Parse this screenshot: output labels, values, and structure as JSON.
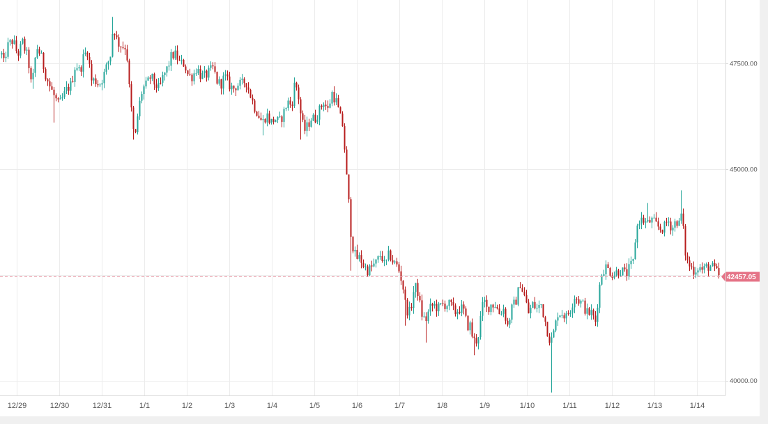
{
  "chart_data": {
    "type": "candlestick",
    "x_tick_labels": [
      "12/29",
      "12/30",
      "12/31",
      "1/1",
      "1/2",
      "1/3",
      "1/4",
      "1/5",
      "1/6",
      "1/7",
      "1/8",
      "1/9",
      "1/10",
      "1/11",
      "1/12",
      "1/13",
      "1/14"
    ],
    "y_tick_labels": [
      "47500.00",
      "45000.00",
      "40000.00"
    ],
    "y_ticks": [
      40000,
      42500,
      45000,
      47500
    ],
    "ylim": [
      39650,
      49000
    ],
    "current_price": 42457.05,
    "current_price_label": "42457.05",
    "grid": true,
    "colors": {
      "up": "#26a69a",
      "down": "#b71c1c",
      "price_tag": "#e57387",
      "price_line": "#e8a0ad"
    },
    "path_points": [
      [
        0,
        47850
      ],
      [
        5,
        47500
      ],
      [
        10,
        47900
      ],
      [
        18,
        48050
      ],
      [
        25,
        47700
      ],
      [
        32,
        48000
      ],
      [
        40,
        47600
      ],
      [
        45,
        46900
      ],
      [
        52,
        47900
      ],
      [
        58,
        47700
      ],
      [
        64,
        47300
      ],
      [
        70,
        47000
      ],
      [
        78,
        46700
      ],
      [
        84,
        46500
      ],
      [
        90,
        46700
      ],
      [
        96,
        46900
      ],
      [
        102,
        47000
      ],
      [
        108,
        47500
      ],
      [
        114,
        47300
      ],
      [
        120,
        47700
      ],
      [
        126,
        47800
      ],
      [
        130,
        47100
      ],
      [
        136,
        47100
      ],
      [
        142,
        47000
      ],
      [
        148,
        47200
      ],
      [
        154,
        47500
      ],
      [
        158,
        47700
      ],
      [
        162,
        48400
      ],
      [
        168,
        48000
      ],
      [
        175,
        47900
      ],
      [
        181,
        47900
      ],
      [
        184,
        47100
      ],
      [
        188,
        46400
      ],
      [
        191,
        45900
      ],
      [
        194,
        45800
      ],
      [
        198,
        46400
      ],
      [
        204,
        46900
      ],
      [
        210,
        47000
      ],
      [
        216,
        47200
      ],
      [
        222,
        47000
      ],
      [
        228,
        46900
      ],
      [
        234,
        47200
      ],
      [
        240,
        47400
      ],
      [
        246,
        47700
      ],
      [
        252,
        47700
      ],
      [
        258,
        47500
      ],
      [
        264,
        47500
      ],
      [
        270,
        47200
      ],
      [
        276,
        47200
      ],
      [
        282,
        47400
      ],
      [
        288,
        47200
      ],
      [
        294,
        47200
      ],
      [
        300,
        47300
      ],
      [
        306,
        47400
      ],
      [
        310,
        47100
      ],
      [
        316,
        47000
      ],
      [
        322,
        47200
      ],
      [
        328,
        47000
      ],
      [
        334,
        46900
      ],
      [
        340,
        47000
      ],
      [
        346,
        47000
      ],
      [
        352,
        47100
      ],
      [
        358,
        46800
      ],
      [
        364,
        46500
      ],
      [
        370,
        46300
      ],
      [
        376,
        46100
      ],
      [
        382,
        46300
      ],
      [
        388,
        46100
      ],
      [
        394,
        46200
      ],
      [
        400,
        46100
      ],
      [
        406,
        46300
      ],
      [
        412,
        46600
      ],
      [
        418,
        46500
      ],
      [
        423,
        47100
      ],
      [
        428,
        46700
      ],
      [
        432,
        46200
      ],
      [
        436,
        45900
      ],
      [
        440,
        46000
      ],
      [
        446,
        46200
      ],
      [
        452,
        46200
      ],
      [
        458,
        46400
      ],
      [
        464,
        46600
      ],
      [
        470,
        46400
      ],
      [
        476,
        46800
      ],
      [
        482,
        46600
      ],
      [
        488,
        46200
      ],
      [
        492,
        46000
      ],
      [
        496,
        45000
      ],
      [
        500,
        44200
      ],
      [
        504,
        43300
      ],
      [
        510,
        42900
      ],
      [
        516,
        42900
      ],
      [
        522,
        42700
      ],
      [
        528,
        42600
      ],
      [
        534,
        42700
      ],
      [
        540,
        42800
      ],
      [
        546,
        43000
      ],
      [
        552,
        42700
      ],
      [
        558,
        43000
      ],
      [
        564,
        42800
      ],
      [
        570,
        42700
      ],
      [
        574,
        42500
      ],
      [
        578,
        42200
      ],
      [
        582,
        41700
      ],
      [
        588,
        41600
      ],
      [
        594,
        42200
      ],
      [
        598,
        42200
      ],
      [
        604,
        41600
      ],
      [
        610,
        41400
      ],
      [
        616,
        41700
      ],
      [
        622,
        41800
      ],
      [
        628,
        41700
      ],
      [
        634,
        41800
      ],
      [
        640,
        41800
      ],
      [
        646,
        41800
      ],
      [
        652,
        41600
      ],
      [
        658,
        41700
      ],
      [
        664,
        41700
      ],
      [
        670,
        41300
      ],
      [
        674,
        41300
      ],
      [
        678,
        41000
      ],
      [
        682,
        40900
      ],
      [
        686,
        41100
      ],
      [
        690,
        41600
      ],
      [
        694,
        41900
      ],
      [
        698,
        41700
      ],
      [
        704,
        41800
      ],
      [
        710,
        41800
      ],
      [
        716,
        41600
      ],
      [
        722,
        41700
      ],
      [
        728,
        41300
      ],
      [
        734,
        41700
      ],
      [
        740,
        41900
      ],
      [
        746,
        42300
      ],
      [
        752,
        42000
      ],
      [
        758,
        41600
      ],
      [
        764,
        41800
      ],
      [
        770,
        41700
      ],
      [
        776,
        41800
      ],
      [
        782,
        41400
      ],
      [
        786,
        41100
      ],
      [
        790,
        40900
      ],
      [
        795,
        41200
      ],
      [
        800,
        41600
      ],
      [
        806,
        41600
      ],
      [
        812,
        41500
      ],
      [
        818,
        41700
      ],
      [
        824,
        42000
      ],
      [
        830,
        41900
      ],
      [
        836,
        41800
      ],
      [
        842,
        41600
      ],
      [
        848,
        41600
      ],
      [
        854,
        41400
      ],
      [
        858,
        42000
      ],
      [
        862,
        42500
      ],
      [
        868,
        42700
      ],
      [
        874,
        42600
      ],
      [
        880,
        42500
      ],
      [
        886,
        42600
      ],
      [
        892,
        42600
      ],
      [
        898,
        42500
      ],
      [
        904,
        42700
      ],
      [
        908,
        42800
      ],
      [
        912,
        43500
      ],
      [
        916,
        43800
      ],
      [
        922,
        43800
      ],
      [
        928,
        43700
      ],
      [
        934,
        43800
      ],
      [
        940,
        43700
      ],
      [
        946,
        43600
      ],
      [
        952,
        43600
      ],
      [
        958,
        43800
      ],
      [
        964,
        43600
      ],
      [
        970,
        43800
      ],
      [
        974,
        43700
      ],
      [
        978,
        44000
      ],
      [
        982,
        43100
      ],
      [
        986,
        42800
      ],
      [
        990,
        42700
      ],
      [
        996,
        42600
      ],
      [
        1002,
        42700
      ],
      [
        1008,
        42600
      ],
      [
        1014,
        42700
      ],
      [
        1020,
        42700
      ],
      [
        1026,
        42600
      ],
      [
        1032,
        42460
      ]
    ],
    "spikes": [
      [
        48,
        46900
      ],
      [
        78,
        46100
      ],
      [
        160,
        48600
      ],
      [
        190,
        45700
      ],
      [
        376,
        45800
      ],
      [
        432,
        45700
      ],
      [
        504,
        42600
      ],
      [
        580,
        41300
      ],
      [
        610,
        40900
      ],
      [
        680,
        40600
      ],
      [
        792,
        39720
      ],
      [
        856,
        41300
      ],
      [
        930,
        44200
      ],
      [
        978,
        44500
      ],
      [
        995,
        42400
      ]
    ]
  }
}
